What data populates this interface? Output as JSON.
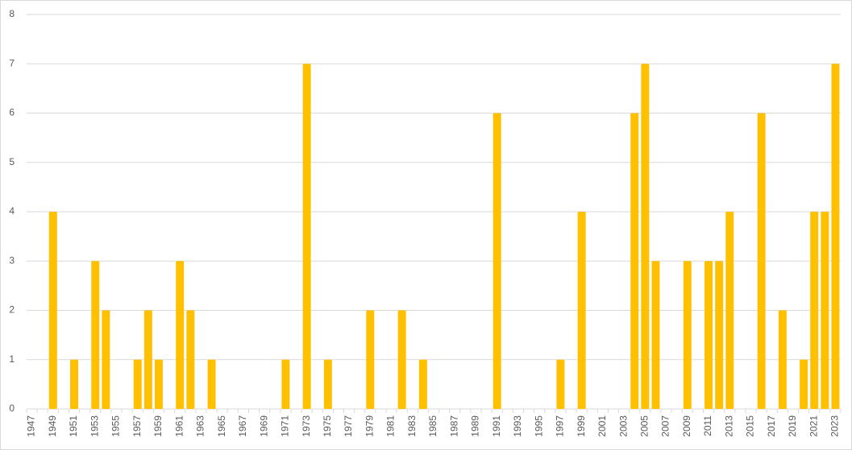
{
  "chart_data": {
    "type": "bar",
    "categories": [
      "1947",
      null,
      "1949",
      null,
      "1951",
      null,
      "1953",
      null,
      "1955",
      null,
      "1957",
      null,
      "1959",
      null,
      "1961",
      null,
      "1963",
      null,
      "1965",
      null,
      "1967",
      null,
      "1969",
      null,
      "1971",
      null,
      "1973",
      null,
      "1975",
      null,
      "1977",
      null,
      "1979",
      null,
      "1981",
      null,
      "1983",
      null,
      "1985",
      null,
      "1987",
      null,
      "1989",
      null,
      "1991",
      null,
      "1993",
      null,
      "1995",
      null,
      "1997",
      null,
      "1999",
      null,
      "2001",
      null,
      "2003",
      null,
      "2005",
      null,
      "2007",
      null,
      "2009",
      null,
      "2011",
      null,
      "2013",
      null,
      "2015",
      null,
      "2017",
      null,
      "2019",
      null,
      "2021",
      null,
      "2023"
    ],
    "values": [
      0,
      0,
      4,
      0,
      1,
      0,
      3,
      2,
      0,
      0,
      1,
      2,
      1,
      0,
      3,
      2,
      0,
      1,
      0,
      0,
      0,
      0,
      0,
      0,
      1,
      0,
      7,
      0,
      1,
      0,
      0,
      0,
      2,
      0,
      0,
      2,
      0,
      1,
      0,
      0,
      0,
      0,
      0,
      0,
      6,
      0,
      0,
      0,
      0,
      0,
      1,
      0,
      4,
      0,
      0,
      0,
      0,
      6,
      7,
      3,
      0,
      0,
      3,
      0,
      3,
      3,
      4,
      0,
      0,
      6,
      0,
      2,
      0,
      1,
      4,
      4,
      7
    ],
    "color": "#ffc000",
    "ylim": [
      0,
      8
    ],
    "yticks": [
      0,
      1,
      2,
      3,
      4,
      5,
      6,
      7,
      8
    ],
    "grid": true
  }
}
